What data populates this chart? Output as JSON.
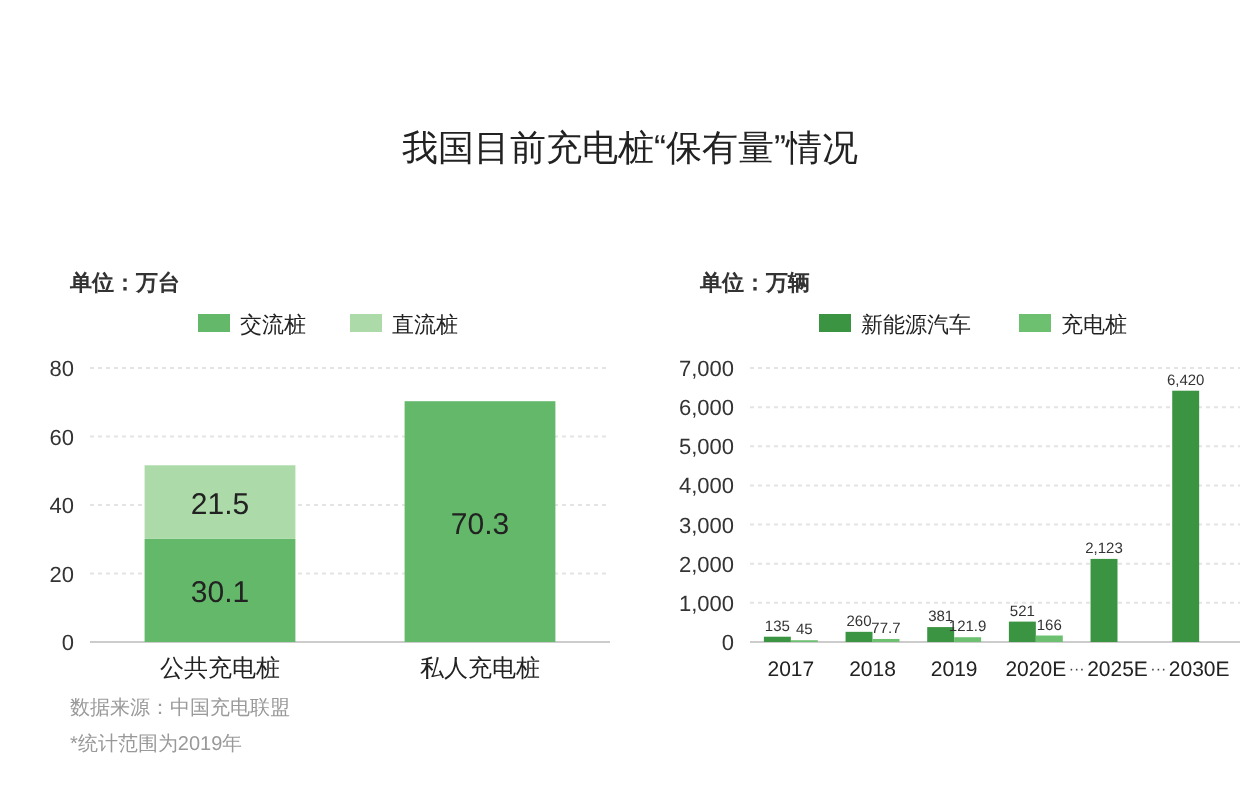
{
  "chart_data": [
    {
      "type": "bar",
      "title": "我国目前充电桩“保有量”情况",
      "ylabel": "单位：万台",
      "categories": [
        "公共充电桩",
        "私人充电桩"
      ],
      "stacked": true,
      "series": [
        {
          "name": "交流桩",
          "color": "#63b86a",
          "values": [
            30.1,
            70.3
          ]
        },
        {
          "name": "直流桩",
          "color": "#acdaa8",
          "values": [
            21.5,
            null
          ]
        }
      ],
      "ylim": [
        0,
        80
      ],
      "yticks": [
        0,
        20,
        40,
        60,
        80
      ],
      "grid": "y",
      "legend": "top",
      "data_labels": true,
      "annotations": [
        "数据来源：中国充电联盟",
        "*统计范围为2019年"
      ]
    },
    {
      "type": "bar",
      "ylabel": "单位：万辆",
      "categories": [
        "2017",
        "2018",
        "2019",
        "2020E",
        "2025E",
        "2030E"
      ],
      "series": [
        {
          "name": "新能源汽车",
          "color": "#3b9442",
          "values": [
            135,
            260,
            381,
            521,
            2123,
            6420
          ],
          "value_labels": [
            "135",
            "260",
            "381",
            "521",
            "2,123",
            "6,420"
          ]
        },
        {
          "name": "充电桩",
          "color": "#6cc070",
          "values": [
            45,
            77.7,
            121.9,
            166,
            null,
            null
          ],
          "value_labels": [
            "45",
            "77.7",
            "121.9",
            "166",
            null,
            null
          ]
        }
      ],
      "ylim": [
        0,
        7000
      ],
      "yticks": [
        0,
        {
          "value": 1000,
          "label": "1,000"
        },
        {
          "value": 2000,
          "label": "2,000"
        },
        {
          "value": 3000,
          "label": "3,000"
        },
        {
          "value": 4000,
          "label": "4,000"
        },
        {
          "value": 5000,
          "label": "5,000"
        },
        {
          "value": 6000,
          "label": "6,000"
        },
        {
          "value": 7000,
          "label": "7,000"
        }
      ],
      "grid": "y",
      "legend": "top",
      "annotations": [
        "···",
        "···"
      ]
    }
  ]
}
